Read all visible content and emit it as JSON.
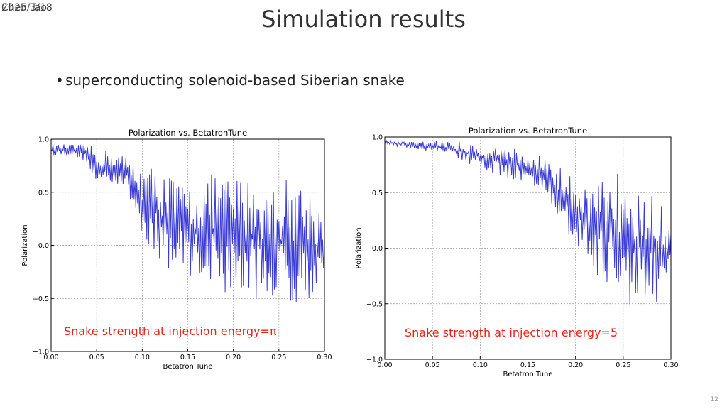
{
  "slide": {
    "corner_date": "2025/3/18",
    "corner_author": "Chen Tao",
    "title": "Simulation results",
    "bullet": "superconducting solenoid-based Siberian snake",
    "captions": [
      "Snake strength at injection energy=π",
      "Snake strength at injection energy=5"
    ],
    "page_number": "12"
  },
  "chart_data": [
    {
      "type": "line",
      "title": "Polarization vs. BetatronTune",
      "xlabel": "Betatron Tune",
      "ylabel": "Polarization",
      "xlim": [
        0.0,
        0.3
      ],
      "ylim": [
        -1.0,
        1.0
      ],
      "xticks": [
        "0.00",
        "0.05",
        "0.10",
        "0.15",
        "0.20",
        "0.25",
        "0.30"
      ],
      "yticks": [
        "-1.0",
        "-0.5",
        "0.0",
        "0.5",
        "1.0"
      ],
      "grid": true,
      "color": "#3a3ad6",
      "x": [
        0.0,
        0.02,
        0.04,
        0.05,
        0.06,
        0.08,
        0.1,
        0.12,
        0.14,
        0.16,
        0.18,
        0.2,
        0.22,
        0.24,
        0.26,
        0.28,
        0.3
      ],
      "envelope_upper": [
        0.95,
        0.95,
        0.95,
        0.92,
        0.9,
        0.85,
        0.75,
        0.75,
        0.6,
        0.55,
        0.7,
        0.65,
        0.65,
        0.55,
        0.65,
        0.6,
        0.3
      ],
      "envelope_lower": [
        0.85,
        0.85,
        0.78,
        0.5,
        0.6,
        0.55,
        0.1,
        -0.2,
        -0.25,
        -0.3,
        -0.4,
        -0.5,
        -0.5,
        -0.52,
        -0.55,
        -0.55,
        -0.35
      ]
    },
    {
      "type": "line",
      "title": "Polarization vs. BetatronTune",
      "xlabel": "Betatron Tune",
      "ylabel": "Polarization",
      "xlim": [
        0.0,
        0.3
      ],
      "ylim": [
        -1.0,
        1.0
      ],
      "xticks": [
        "0.00",
        "0.05",
        "0.10",
        "0.15",
        "0.20",
        "0.25",
        "0.30"
      ],
      "yticks": [
        "-1.0",
        "-0.5",
        "0.0",
        "0.5",
        "1.0"
      ],
      "grid": true,
      "color": "#3a3ad6",
      "x": [
        0.0,
        0.02,
        0.04,
        0.06,
        0.08,
        0.1,
        0.12,
        0.14,
        0.16,
        0.18,
        0.2,
        0.22,
        0.24,
        0.26,
        0.28,
        0.3
      ],
      "envelope_upper": [
        0.97,
        0.97,
        0.97,
        0.97,
        0.96,
        0.93,
        0.92,
        0.9,
        0.85,
        0.78,
        0.6,
        0.55,
        0.7,
        0.7,
        0.7,
        0.2
      ],
      "envelope_lower": [
        0.94,
        0.9,
        0.88,
        0.85,
        0.78,
        0.72,
        0.65,
        0.6,
        0.5,
        0.3,
        0.0,
        -0.25,
        -0.4,
        -0.55,
        -0.6,
        -0.2
      ]
    }
  ]
}
